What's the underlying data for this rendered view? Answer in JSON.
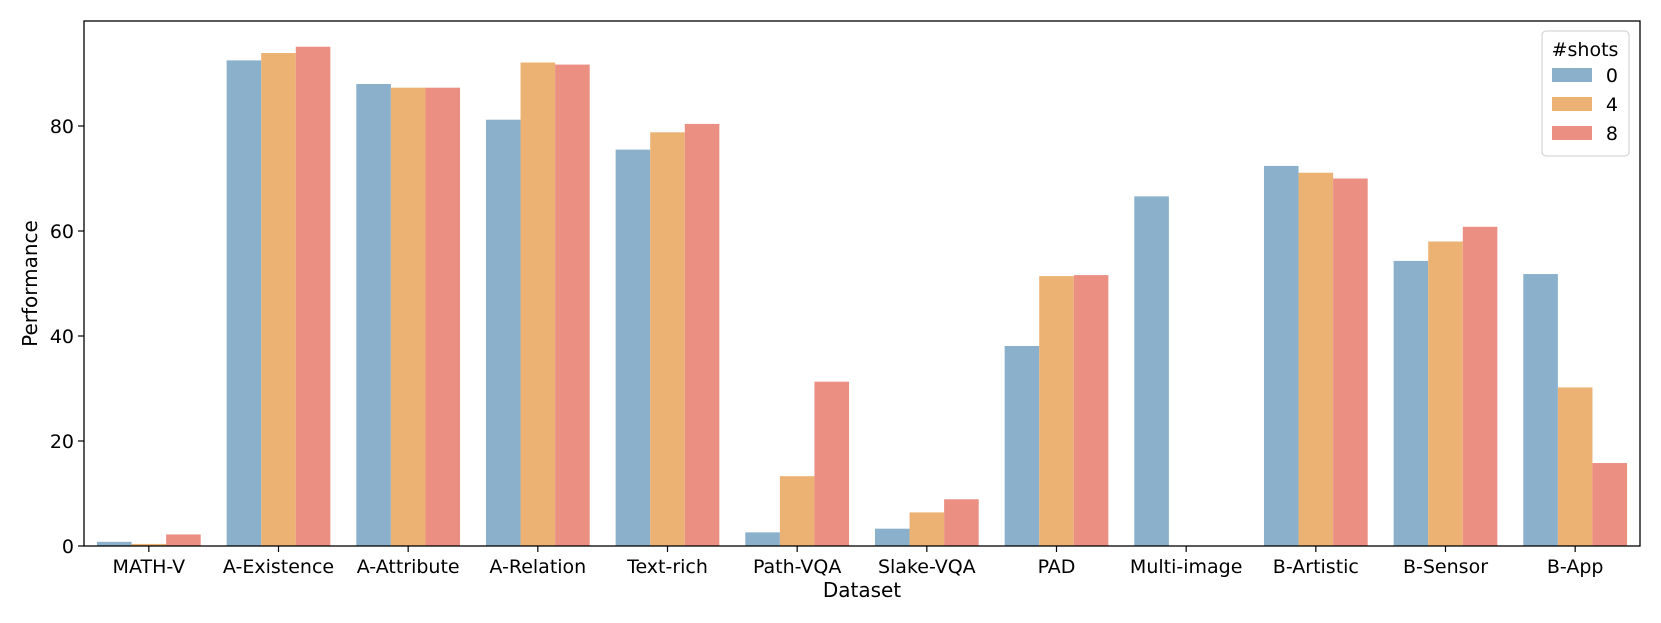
{
  "chart_data": {
    "type": "bar",
    "title": "",
    "xlabel": "Dataset",
    "ylabel": "Performance",
    "ylim": [
      0,
      100
    ],
    "yticks": [
      0,
      20,
      40,
      60,
      80
    ],
    "grid": false,
    "legend": {
      "title": "#shots",
      "placement": "top-right"
    },
    "categories": [
      "MATH-V",
      "A-Existence",
      "A-Attribute",
      "A-Relation",
      "Text-rich",
      "Path-VQA",
      "Slake-VQA",
      "PAD",
      "Multi-image",
      "B-Artistic",
      "B-Sensor",
      "B-App"
    ],
    "series": [
      {
        "name": "0",
        "color": "#8ab0cc",
        "values": [
          0.8,
          92.5,
          88.0,
          81.2,
          75.5,
          2.6,
          3.3,
          38.1,
          66.6,
          72.4,
          54.3,
          51.8
        ]
      },
      {
        "name": "4",
        "color": "#ecb274",
        "values": [
          0.4,
          93.9,
          87.3,
          92.1,
          78.8,
          13.3,
          6.4,
          51.4,
          null,
          71.1,
          58.0,
          30.2
        ]
      },
      {
        "name": "8",
        "color": "#eb8f83",
        "values": [
          2.2,
          95.1,
          87.3,
          91.7,
          80.4,
          31.3,
          8.9,
          51.6,
          null,
          70.0,
          60.8,
          15.8
        ]
      }
    ]
  }
}
